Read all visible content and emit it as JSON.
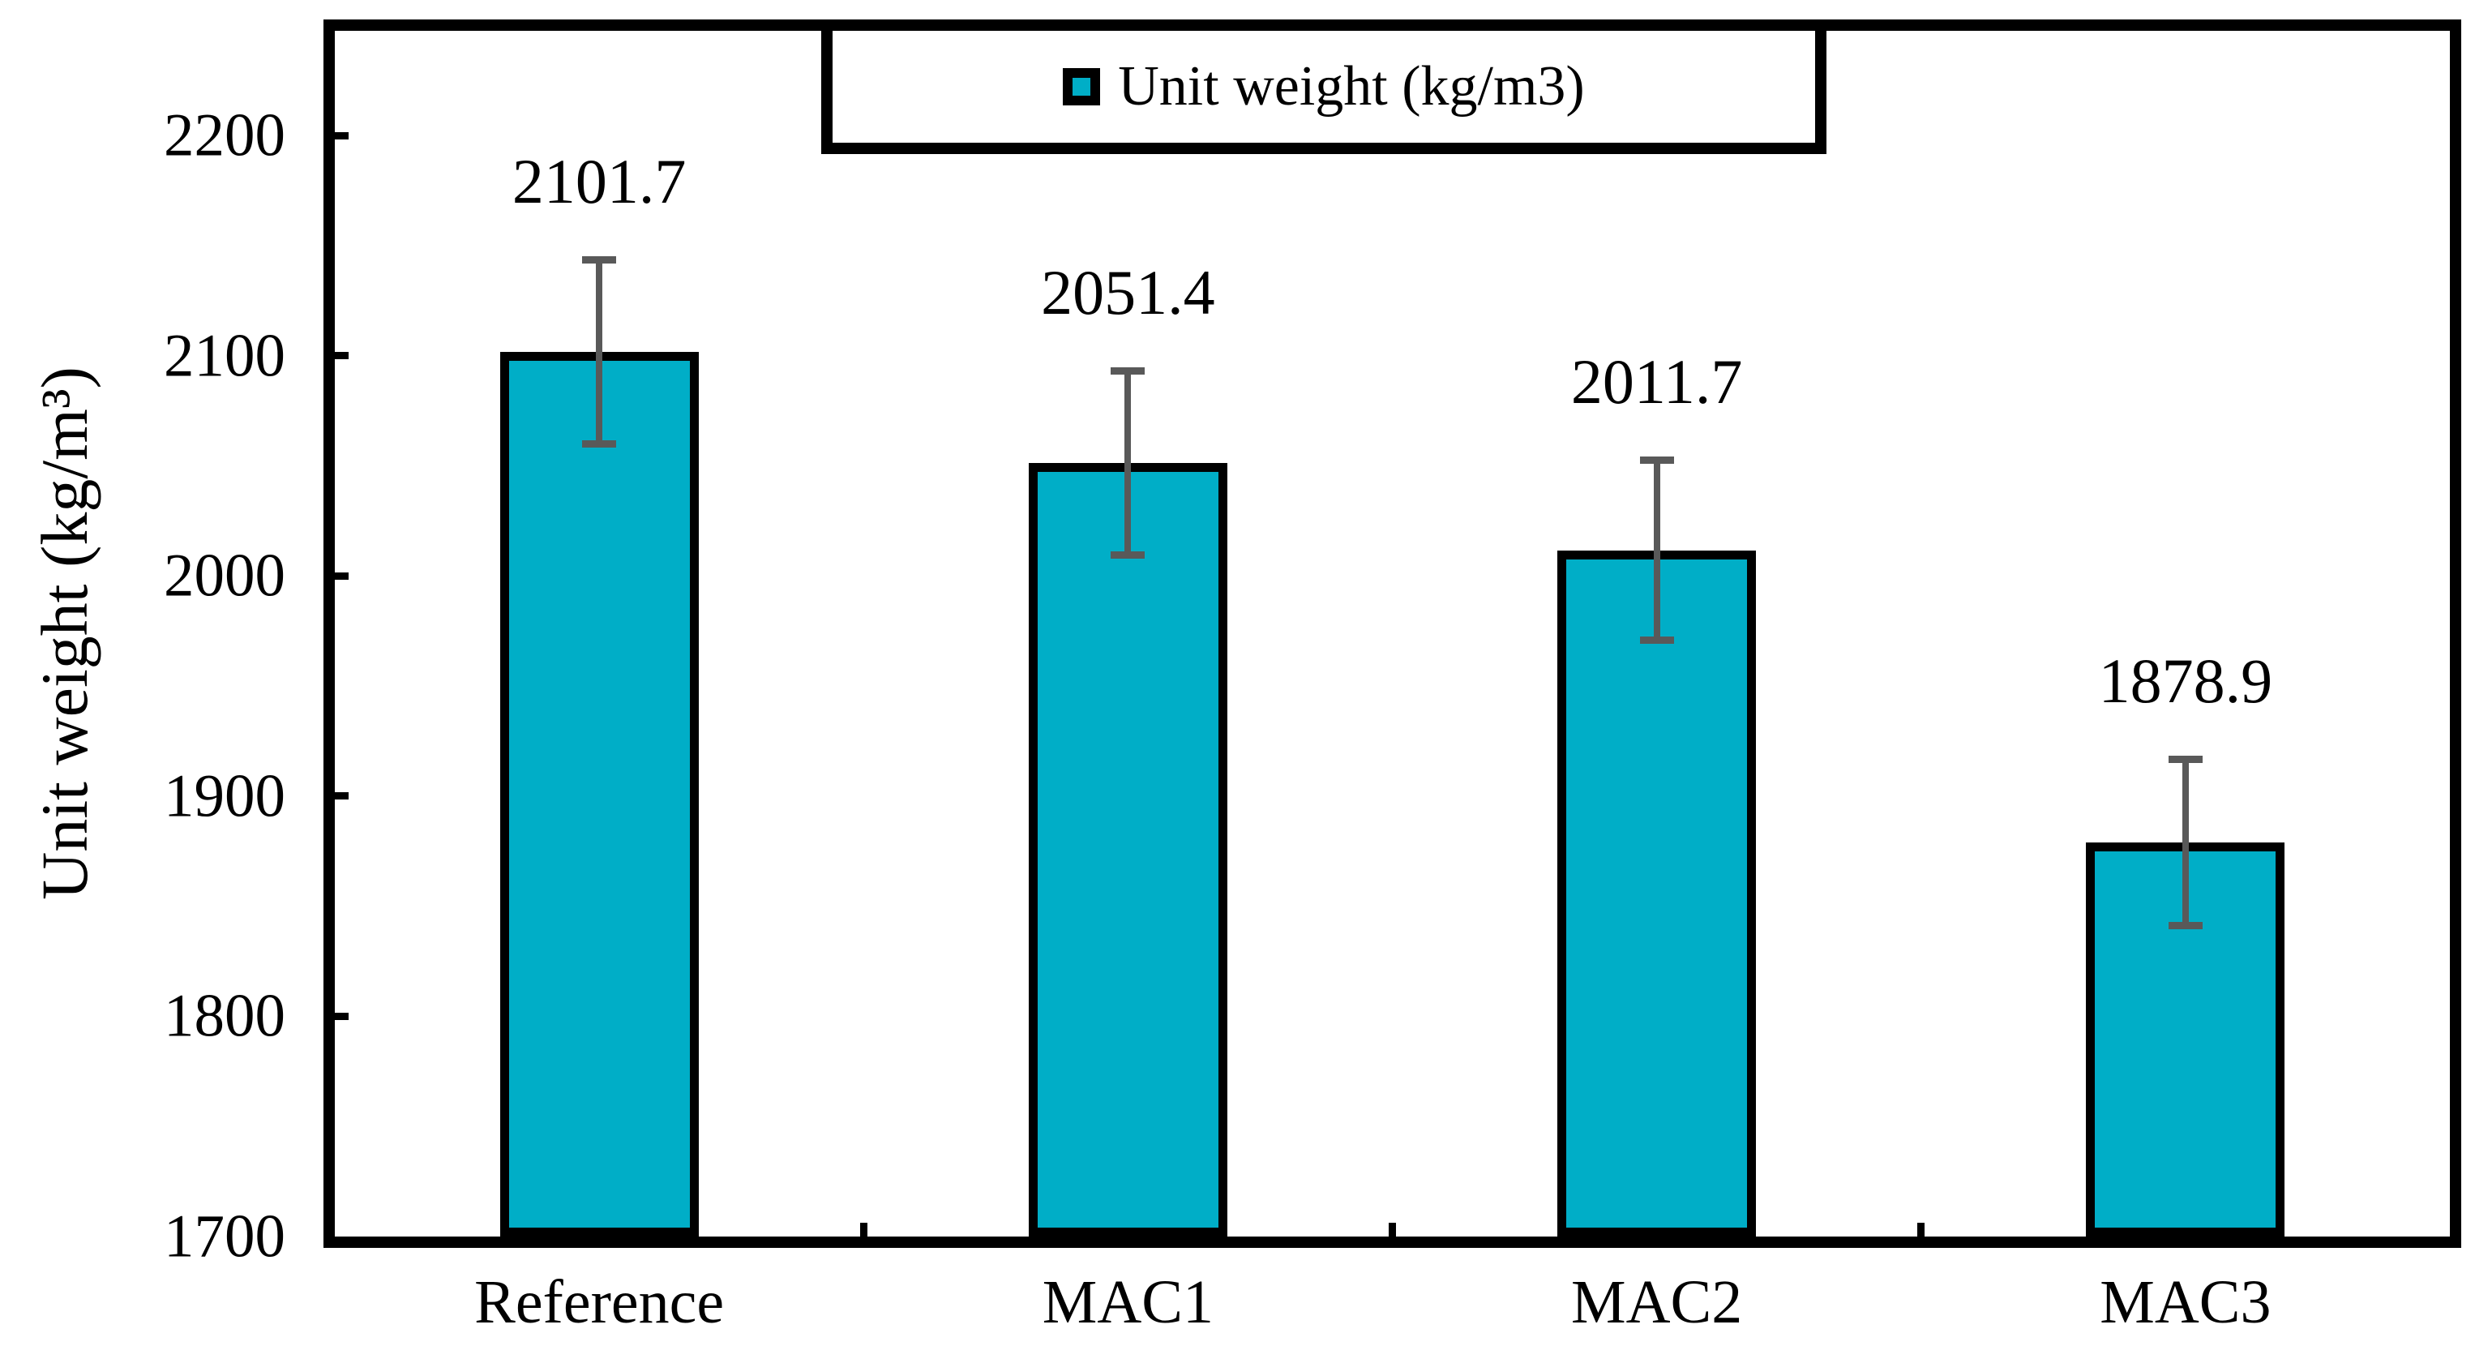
{
  "chart_data": {
    "type": "bar",
    "title": "",
    "categories": [
      "Reference",
      "MAC1",
      "MAC2",
      "MAC3"
    ],
    "values": [
      2101.7,
      2051.4,
      2011.7,
      1878.9
    ],
    "errors": [
      42,
      42,
      41,
      38
    ],
    "legend": [
      "Unit weight (kg/m3)"
    ],
    "legend_position": "top",
    "xlabel": "",
    "ylabel": "Unit weight (kg/m³)",
    "ylim": [
      1700,
      2200
    ],
    "yticks": [
      1700,
      1800,
      1900,
      2000,
      2100,
      2200
    ],
    "ytick_step": 100,
    "grid": false,
    "value_label_decimals": 1,
    "colors": {
      "bar_fill": "#00AEC7",
      "bar_border": "#000000",
      "error_bar": "#595959",
      "axis": "#000000",
      "background": "#FFFFFF"
    }
  }
}
